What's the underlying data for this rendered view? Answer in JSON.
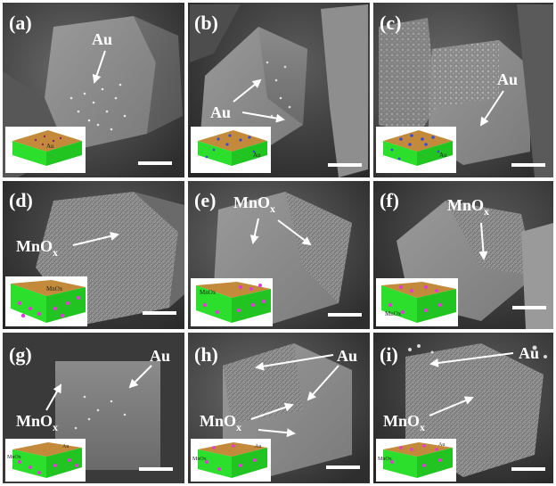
{
  "figure": {
    "panels": [
      {
        "id": "a",
        "label": "(a)",
        "annotations": [
          {
            "text": "Au"
          }
        ],
        "schematic_labels": [
          "Au"
        ],
        "schematic_colors": {
          "top": "#c28a3a",
          "side": "#2ddf2d",
          "dots": "#9a1a6b"
        }
      },
      {
        "id": "b",
        "label": "(b)",
        "annotations": [
          {
            "text": "Au"
          }
        ],
        "schematic_labels": [
          "Au"
        ],
        "schematic_colors": {
          "top": "#c28a3a",
          "side": "#2ddf2d",
          "dots": "#3b4bd6"
        }
      },
      {
        "id": "c",
        "label": "(c)",
        "annotations": [
          {
            "text": "Au"
          }
        ],
        "schematic_labels": [
          "Au"
        ],
        "schematic_colors": {
          "top": "#c28a3a",
          "side": "#2ddf2d",
          "dots": "#3b4bd6"
        }
      },
      {
        "id": "d",
        "label": "(d)",
        "annotations": [
          {
            "text": "MnO",
            "sub": "x"
          }
        ],
        "schematic_labels": [
          "MnOx"
        ],
        "schematic_colors": {
          "top": "#c28a3a",
          "side": "#2ddf2d",
          "dots": "#e23bd8"
        }
      },
      {
        "id": "e",
        "label": "(e)",
        "annotations": [
          {
            "text": "MnO",
            "sub": "x"
          }
        ],
        "schematic_labels": [
          "MnOx"
        ],
        "schematic_colors": {
          "top": "#c28a3a",
          "side": "#2ddf2d",
          "dots": "#e23bd8"
        }
      },
      {
        "id": "f",
        "label": "(f)",
        "annotations": [
          {
            "text": "MnO",
            "sub": "x"
          }
        ],
        "schematic_labels": [
          "MnOx"
        ],
        "schematic_colors": {
          "top": "#c28a3a",
          "side": "#2ddf2d",
          "dots": "#e23bd8"
        }
      },
      {
        "id": "g",
        "label": "(g)",
        "annotations": [
          {
            "text": "Au"
          },
          {
            "text": "MnO",
            "sub": "x"
          }
        ],
        "schematic_labels": [
          "Au",
          "MnOx"
        ],
        "schematic_colors": {
          "top": "#c28a3a",
          "side": "#2ddf2d",
          "dots": "#e23bd8"
        }
      },
      {
        "id": "h",
        "label": "(h)",
        "annotations": [
          {
            "text": "Au"
          },
          {
            "text": "MnO",
            "sub": "x"
          }
        ],
        "schematic_labels": [
          "Au",
          "MnOx"
        ],
        "schematic_colors": {
          "top": "#c28a3a",
          "side": "#2ddf2d",
          "dots": "#e23bd8"
        }
      },
      {
        "id": "i",
        "label": "(i)",
        "annotations": [
          {
            "text": "Au"
          },
          {
            "text": "MnO",
            "sub": "x"
          }
        ],
        "schematic_labels": [
          "Au",
          "MnOx"
        ],
        "schematic_colors": {
          "top": "#c28a3a",
          "side": "#2ddf2d",
          "dots": "#e23bd8"
        }
      }
    ],
    "colors": {
      "label": "#ffffff",
      "arrow": "#ffffff",
      "scale_bar": "#ffffff",
      "sem_bg": "#4a4a4a"
    }
  }
}
